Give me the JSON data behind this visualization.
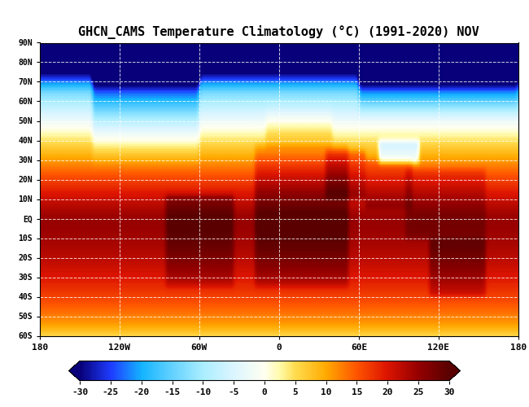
{
  "title": "GHCN_CAMS Temperature Climatology (°C) (1991-2020) NOV",
  "colorbar_ticks": [
    -30,
    -25,
    -20,
    -15,
    -10,
    -5,
    0,
    5,
    10,
    15,
    20,
    25,
    30
  ],
  "vmin": -30,
  "vmax": 30,
  "lon_min": -180,
  "lon_max": 180,
  "lat_min": -60,
  "lat_max": 90,
  "xticks": [
    -180,
    -120,
    -60,
    0,
    60,
    120,
    180
  ],
  "xtick_labels": [
    "180",
    "120W",
    "60W",
    "0",
    "60E",
    "120E",
    "180"
  ],
  "yticks": [
    -60,
    -50,
    -40,
    -30,
    -20,
    -10,
    0,
    10,
    20,
    30,
    40,
    50,
    60,
    70,
    80,
    90
  ],
  "ytick_labels": [
    "60S",
    "50S",
    "40S",
    "30S",
    "20S",
    "10S",
    "EQ",
    "10N",
    "20N",
    "30N",
    "40N",
    "50N",
    "60N",
    "70N",
    "80N",
    "90N"
  ],
  "background_color": "#ffffff",
  "colormap_colors": [
    [
      0.0,
      "#08007a"
    ],
    [
      0.083,
      "#1e3cff"
    ],
    [
      0.167,
      "#14b4ff"
    ],
    [
      0.25,
      "#64d2ff"
    ],
    [
      0.333,
      "#aaeeff"
    ],
    [
      0.417,
      "#dcf5ff"
    ],
    [
      0.5,
      "#fffff0"
    ],
    [
      0.542,
      "#fffaaa"
    ],
    [
      0.583,
      "#ffdc50"
    ],
    [
      0.667,
      "#ffaa00"
    ],
    [
      0.75,
      "#ff5500"
    ],
    [
      0.833,
      "#dc1400"
    ],
    [
      0.917,
      "#960000"
    ],
    [
      1.0,
      "#5a0000"
    ]
  ],
  "figure_width": 6.5,
  "figure_height": 5.0,
  "dpi": 100
}
